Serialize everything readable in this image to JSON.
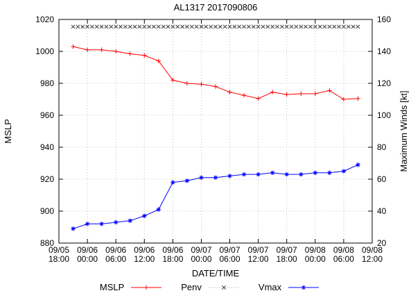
{
  "chart_data": {
    "type": "line",
    "title": "AL1317 2017090806",
    "xlabel": "DATE/TIME",
    "ylabel_left": "MSLP",
    "ylabel_right": "Maximum Winds [kt]",
    "grid": true,
    "legend_position": "bottom-center",
    "x_range_hours": [
      0,
      66
    ],
    "x_ticks": [
      {
        "hours": 0,
        "label": "09/05 18:00"
      },
      {
        "hours": 6,
        "label": "09/06 00:00"
      },
      {
        "hours": 12,
        "label": "09/06 06:00"
      },
      {
        "hours": 18,
        "label": "09/06 12:00"
      },
      {
        "hours": 24,
        "label": "09/06 18:00"
      },
      {
        "hours": 30,
        "label": "09/07 00:00"
      },
      {
        "hours": 36,
        "label": "09/07 06:00"
      },
      {
        "hours": 42,
        "label": "09/07 12:00"
      },
      {
        "hours": 48,
        "label": "09/07 18:00"
      },
      {
        "hours": 54,
        "label": "09/08 00:00"
      },
      {
        "hours": 60,
        "label": "09/08 06:00"
      },
      {
        "hours": 66,
        "label": "09/08 12:00"
      }
    ],
    "ylim_left": [
      880,
      1020
    ],
    "left_ticks": [
      880,
      900,
      920,
      940,
      960,
      980,
      1000,
      1020
    ],
    "ylim_right": [
      20,
      160
    ],
    "right_ticks": [
      20,
      40,
      60,
      80,
      100,
      120,
      140,
      160
    ],
    "series": [
      {
        "name": "MSLP",
        "axis": "left",
        "color": "#ff0000",
        "marker": "plus",
        "line_style": "solid",
        "t_hours": [
          3,
          6,
          9,
          12,
          15,
          18,
          21,
          24,
          27,
          30,
          33,
          36,
          39,
          42,
          45,
          48,
          51,
          54,
          57,
          60,
          63
        ],
        "values": [
          1003,
          1001,
          1001,
          1000,
          998.5,
          997.5,
          994,
          982,
          980,
          979.5,
          978,
          974.5,
          972.5,
          970.5,
          974.5,
          973,
          973.5,
          973.5,
          975.5,
          970,
          970.5
        ]
      },
      {
        "name": "Penv",
        "axis": "left",
        "color": "#404040",
        "line_color": "#aaaaaa",
        "marker": "cross",
        "line_style": "dotted",
        "constant": {
          "value": 1015.5,
          "t_start": 3,
          "t_end": 63,
          "t_step": 1
        }
      },
      {
        "name": "Vmax",
        "axis": "right",
        "color": "#0000ff",
        "marker": "asterisk",
        "line_style": "solid",
        "t_hours": [
          3,
          6,
          9,
          12,
          15,
          18,
          21,
          24,
          27,
          30,
          33,
          36,
          39,
          42,
          45,
          48,
          51,
          54,
          57,
          60,
          63
        ],
        "values": [
          29,
          32,
          32,
          33,
          34,
          37,
          41,
          58,
          59,
          61,
          61,
          62,
          63,
          63,
          64,
          63,
          63,
          64,
          64,
          65,
          69
        ]
      }
    ]
  }
}
